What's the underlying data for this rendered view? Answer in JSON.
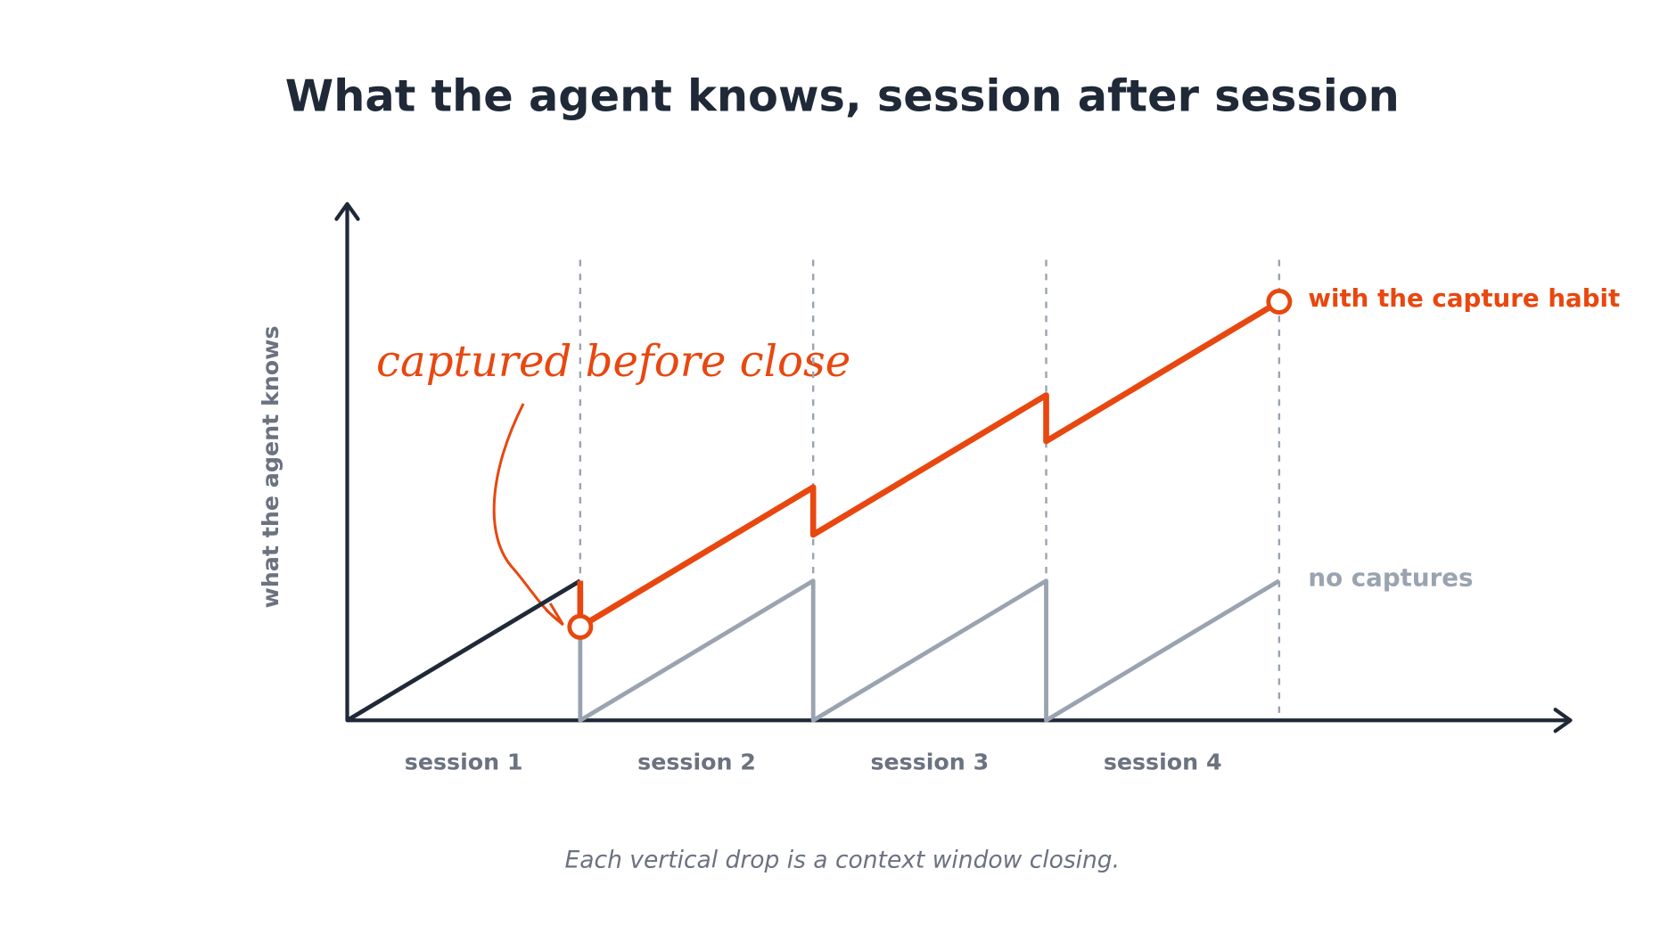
{
  "chart_data": {
    "type": "line",
    "title": "What the agent knows, session after session",
    "y_label": "what the agent knows",
    "caption": "Each vertical drop is a context window closing.",
    "annotation": "captured before close",
    "x_labels": [
      "session 1",
      "session 2",
      "session 3",
      "session 4"
    ],
    "boundaries": [
      1,
      2,
      3,
      4
    ],
    "xlim": [
      0,
      5.25
    ],
    "ylim": [
      0,
      3.7
    ],
    "series": [
      {
        "color": "#1f2937",
        "x": [
          0,
          1
        ],
        "values": [
          0,
          1
        ]
      },
      {
        "name": "no captures",
        "color": "#9aa3b0",
        "x": [
          1,
          1,
          2,
          2,
          3,
          3,
          4
        ],
        "values": [
          1,
          0,
          1,
          0,
          1,
          0,
          1
        ]
      },
      {
        "name": "with the capture habit",
        "color": "#e8470f",
        "x": [
          1,
          1,
          2,
          2,
          3,
          3,
          4
        ],
        "values": [
          1,
          0.67,
          1.67,
          1.33,
          2.33,
          2,
          3
        ]
      }
    ]
  }
}
